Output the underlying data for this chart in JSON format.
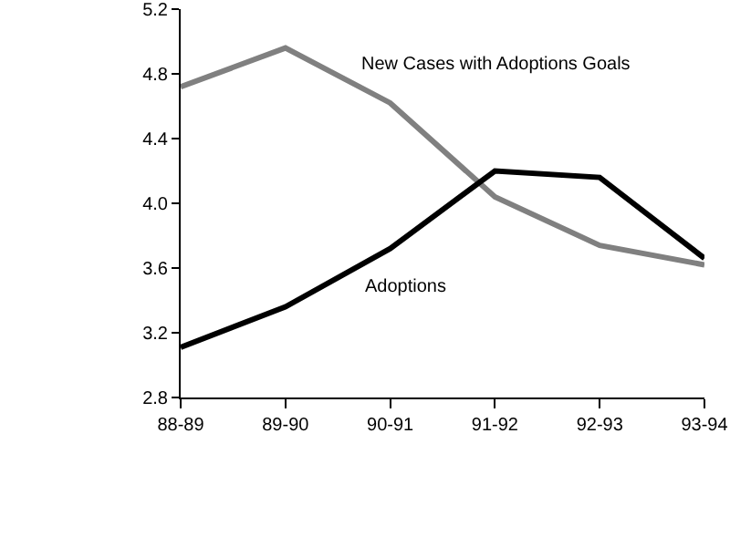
{
  "chart_data": {
    "type": "line",
    "categories": [
      "88-89",
      "89-90",
      "90-91",
      "91-92",
      "92-93",
      "93-94"
    ],
    "series": [
      {
        "name": "New Cases with Adoptions Goals",
        "color": "#808080",
        "values": [
          4.72,
          4.96,
          4.62,
          4.04,
          3.74,
          3.62
        ]
      },
      {
        "name": "Adoptions",
        "color": "#000000",
        "values": [
          3.11,
          3.36,
          3.72,
          4.2,
          4.16,
          3.66
        ]
      }
    ],
    "ylim": [
      2.8,
      5.2
    ],
    "yticks": [
      {
        "value": 2.8,
        "label": "2.8"
      },
      {
        "value": 3.2,
        "label": "3.2"
      },
      {
        "value": 3.6,
        "label": "3.6"
      },
      {
        "value": 4,
        "label": "4.0"
      },
      {
        "value": 4.4,
        "label": "4.4"
      },
      {
        "value": 4.8,
        "label": "4.8"
      },
      {
        "value": 5.2,
        "label": "5.2"
      }
    ],
    "grid": false,
    "legend": false,
    "marker": "none",
    "line_style": "solid"
  }
}
